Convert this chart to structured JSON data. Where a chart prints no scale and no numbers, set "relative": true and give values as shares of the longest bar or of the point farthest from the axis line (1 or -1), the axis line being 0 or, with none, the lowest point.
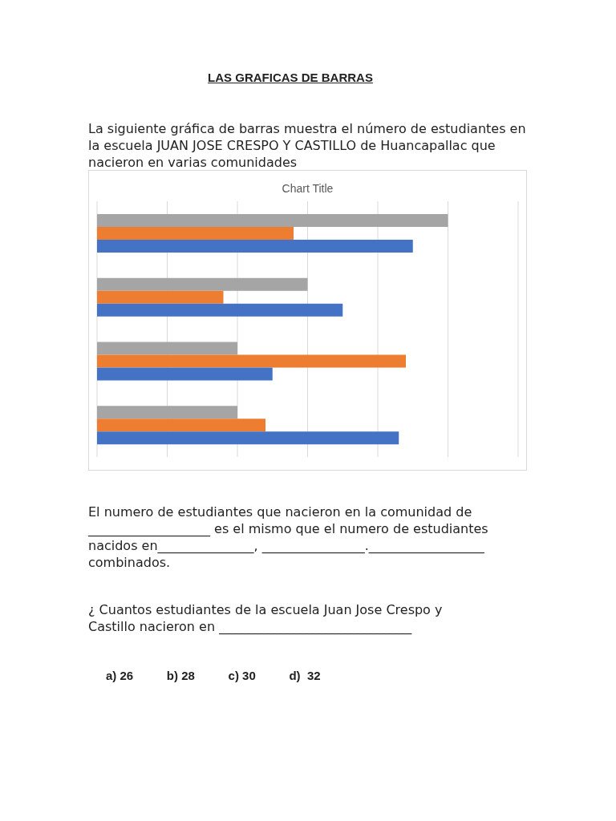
{
  "chart_data": {
    "type": "bar",
    "orientation": "horizontal",
    "relative": true,
    "title": "Chart Title",
    "categories": [
      null,
      null,
      null,
      null
    ],
    "series": [
      {
        "color": "#a5a5a5",
        "values": [
          1.0,
          0.6,
          0.4,
          0.4
        ]
      },
      {
        "color": "#ed7d31",
        "values": [
          0.56,
          0.36,
          0.88,
          0.48
        ]
      },
      {
        "color": "#4472c4",
        "values": [
          0.9,
          0.7,
          0.5,
          0.86
        ]
      }
    ],
    "grid": "x",
    "annotations": [
      "LAS GRAFICAS DE BARRAS",
      "La siguiente gráfica de barras muestra el número de estudiantes en la escuela JUAN JOSE CRESPO Y CASTILLO de Huancapallac que nacieron en varias comunidades",
      "El numero de estudiantes que nacieron en la comunidad de ___________________  es el mismo que el numero de estudiantes nacidos en_______________, ________________.__________________ combinados.",
      "¿ Cuantos estudiantes de la escuela Juan Jose Crespo y Castillo nacieron en ______________________________",
      "a) 26          b) 28          c) 30          d)  32"
    ]
  }
}
